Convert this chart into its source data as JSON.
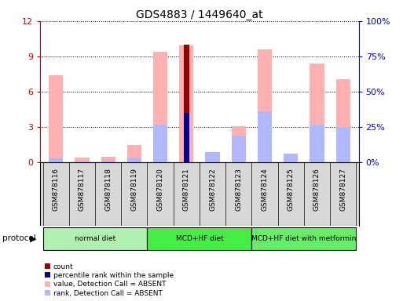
{
  "title": "GDS4883 / 1449640_at",
  "samples": [
    "GSM878116",
    "GSM878117",
    "GSM878118",
    "GSM878119",
    "GSM878120",
    "GSM878121",
    "GSM878122",
    "GSM878123",
    "GSM878124",
    "GSM878125",
    "GSM878126",
    "GSM878127"
  ],
  "value_absent": [
    7.4,
    0.4,
    0.5,
    1.5,
    9.4,
    9.9,
    0.0,
    3.1,
    9.6,
    0.0,
    8.4,
    7.1
  ],
  "rank_absent_pct": [
    3.0,
    0.8,
    1.1,
    3.5,
    27.0,
    0.0,
    7.5,
    19.0,
    36.0,
    6.5,
    27.0,
    25.0
  ],
  "count": [
    0,
    0,
    0,
    0,
    0,
    10.0,
    0,
    0,
    0,
    0,
    0,
    0
  ],
  "percentile_pct": [
    0,
    0,
    0,
    0,
    0,
    35.0,
    0,
    0,
    0,
    0,
    0,
    0
  ],
  "ylim_left": [
    0,
    12
  ],
  "ylim_right": [
    0,
    100
  ],
  "yticks_left": [
    0,
    3,
    6,
    9,
    12
  ],
  "yticks_right": [
    0,
    25,
    50,
    75,
    100
  ],
  "ytick_labels_right": [
    "0%",
    "25%",
    "50%",
    "75%",
    "100%"
  ],
  "protocol_groups": [
    {
      "label": "normal diet",
      "start": 0,
      "end": 3,
      "color": "#b0f0b0"
    },
    {
      "label": "MCD+HF diet",
      "start": 4,
      "end": 7,
      "color": "#44ee44"
    },
    {
      "label": "MCD+HF diet with metformin",
      "start": 8,
      "end": 11,
      "color": "#66ee66"
    }
  ],
  "bar_width": 0.55,
  "color_value_absent": "#ffb0b0",
  "color_rank_absent": "#b0b8ff",
  "color_count": "#990000",
  "color_percentile": "#000099",
  "left_axis_color": "#cc0000",
  "right_axis_color": "#0000cc",
  "grid_color": "#000000",
  "tick_area_color": "#d8d8d8",
  "protocol_label_color": "black"
}
